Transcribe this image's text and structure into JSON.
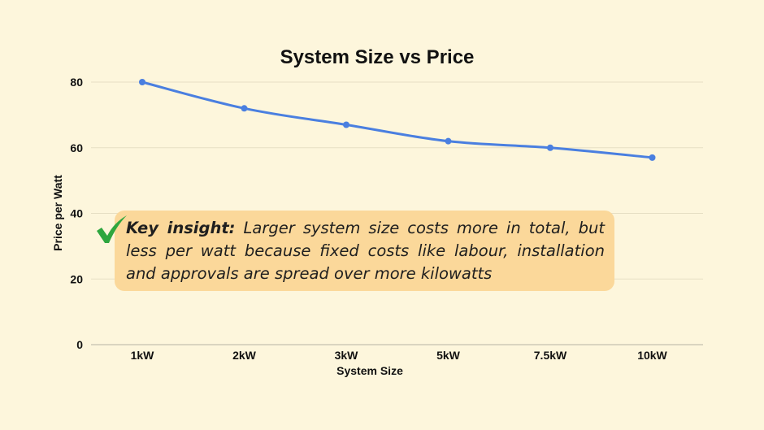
{
  "chart_data": {
    "type": "line",
    "title": "System Size vs Price",
    "xlabel": "System Size",
    "ylabel": "Price per Watt",
    "categories": [
      "1kW",
      "2kW",
      "3kW",
      "5kW",
      "7.5kW",
      "10kW"
    ],
    "values": [
      80,
      72,
      67,
      62,
      60,
      57
    ],
    "ylim": [
      0,
      80
    ],
    "yticks": [
      0,
      20,
      40,
      60,
      80
    ],
    "grid": true,
    "line_color": "#4a7fe0"
  },
  "callout": {
    "label": "Key insight:",
    "text": "Larger system size costs more in total, but less per watt because fixed costs like labour, installation and approvals are spread over more kilowatts"
  },
  "icons": {
    "callout_icon": "checkmark-icon",
    "check_color": "#2ea63f"
  }
}
